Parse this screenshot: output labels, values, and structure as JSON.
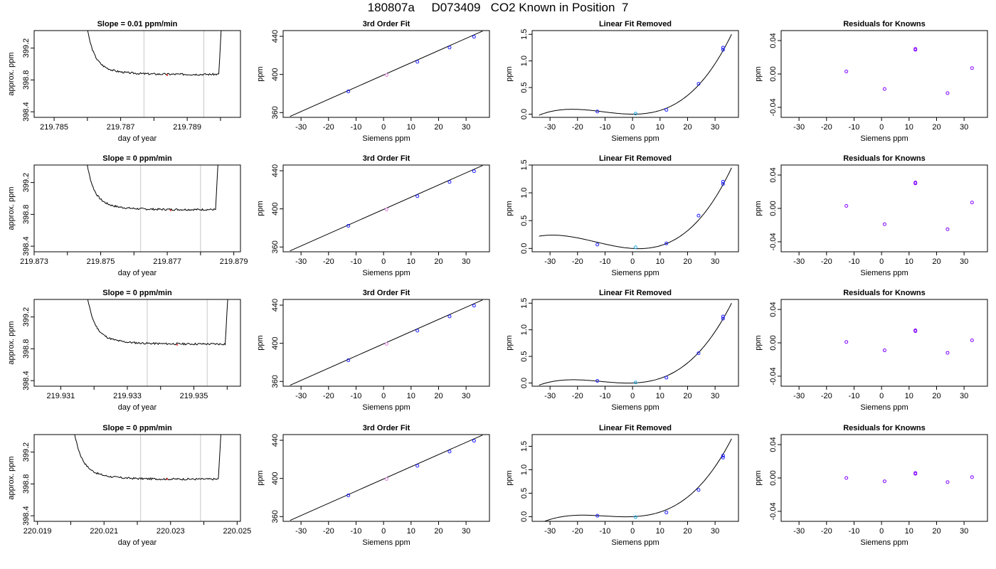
{
  "page": {
    "title": "180807a     D073409   CO2 Known in Position  7"
  },
  "colors": {
    "line": "#000000",
    "marker_blue": "#1a1aff",
    "marker_purple": "#8000ff",
    "marker_cyan": "#1ca9e6",
    "marker_red": "#ff3030",
    "marker_pink": "#e080e0",
    "vline": "#c8c8c8"
  },
  "chart_data": [
    {
      "type": "line",
      "panel": "trace",
      "title": "Slope =  0.01  ppm/min",
      "xlabel": "day of year",
      "ylabel": "approx. ppm",
      "xlim": [
        219.7844,
        219.7906
      ],
      "ylim": [
        398.33,
        399.42
      ],
      "xticks": [
        219.785,
        219.786,
        219.787,
        219.788,
        219.789,
        219.79
      ],
      "xtick_labels": [
        "219.785",
        "",
        "219.787",
        "",
        "219.789",
        ""
      ],
      "yticks": [
        398.4,
        398.8,
        399.2
      ],
      "ytick_labels": [
        "398.4",
        "398.8",
        "399.2"
      ],
      "vlines": [
        219.7877,
        219.7895
      ],
      "x_start": 219.7858,
      "x_end": 219.7901,
      "plateau": 398.87,
      "noise": 0.012,
      "seed": 3,
      "marker": {
        "x": 219.7884,
        "y": 398.86
      }
    },
    {
      "type": "line",
      "panel": "fit",
      "title": "3rd Order Fit",
      "xlabel": "Siemens ppm",
      "ylabel": "ppm",
      "xlim": [
        -36.5,
        38.5
      ],
      "ylim": [
        355,
        446
      ],
      "xticks": [
        -30,
        -20,
        -10,
        0,
        10,
        20,
        30
      ],
      "xtick_labels": [
        "-30",
        "-20",
        "-10",
        "0",
        "10",
        "20",
        "30"
      ],
      "yticks": [
        360,
        400,
        440
      ],
      "ytick_labels": [
        "360",
        "400",
        "440"
      ],
      "line": {
        "x": [
          -34,
          36
        ],
        "y": [
          356,
          445.5
        ]
      },
      "points": [
        {
          "x": -12.8,
          "y": 382.2,
          "c": "blue"
        },
        {
          "x": 1.1,
          "y": 399.4,
          "c": "pink"
        },
        {
          "x": 12.3,
          "y": 413.3,
          "c": "blue"
        },
        {
          "x": 24.0,
          "y": 428.2,
          "c": "blue"
        },
        {
          "x": 32.9,
          "y": 439.5,
          "c": "blue"
        }
      ]
    },
    {
      "type": "line",
      "panel": "cubic",
      "title": "Linear Fit Removed",
      "xlabel": "Siemens ppm",
      "ylabel": "ppm",
      "xlim": [
        -36.5,
        38.5
      ],
      "ylim": [
        -0.06,
        1.57
      ],
      "xticks": [
        -30,
        -20,
        -10,
        0,
        10,
        20,
        30
      ],
      "xtick_labels": [
        "-30",
        "-20",
        "-10",
        "0",
        "10",
        "20",
        "30"
      ],
      "yticks": [
        0,
        0.5,
        1,
        1.5
      ],
      "ytick_labels": [
        "0.0",
        "0.5",
        "1.0",
        "1.5"
      ],
      "curve": {
        "x": [
          -34,
          -20,
          0,
          36
        ],
        "y": [
          -0.02,
          0.09,
          0.0,
          1.5
        ]
      },
      "points": [
        {
          "x": -12.8,
          "y": 0.05,
          "c": "blue"
        },
        {
          "x": 1.1,
          "y": 0.01,
          "c": "cyan"
        },
        {
          "x": 12.3,
          "y": 0.08,
          "c": "blue"
        },
        {
          "x": 24.0,
          "y": 0.57,
          "c": "blue"
        },
        {
          "x": 32.9,
          "y": 1.21,
          "c": "blue"
        },
        {
          "x": 32.9,
          "y": 1.25,
          "c": "blue"
        }
      ]
    },
    {
      "type": "scatter",
      "panel": "resid",
      "title": "Residuals for Knowns",
      "xlabel": "Siemens ppm",
      "ylabel": "ppm",
      "xlim": [
        -36.5,
        38.5
      ],
      "ylim": [
        -0.052,
        0.052
      ],
      "xticks": [
        -30,
        -20,
        -10,
        0,
        10,
        20,
        30
      ],
      "xtick_labels": [
        "-30",
        "-20",
        "-10",
        "0",
        "10",
        "20",
        "30"
      ],
      "yticks": [
        -0.04,
        0,
        0.04
      ],
      "ytick_labels": [
        "-0.04",
        "0.00",
        "0.04"
      ],
      "points": [
        {
          "x": -12.8,
          "y": 0.003
        },
        {
          "x": 1.1,
          "y": -0.018
        },
        {
          "x": 12.3,
          "y": 0.029
        },
        {
          "x": 12.3,
          "y": 0.03
        },
        {
          "x": 24.0,
          "y": -0.023
        },
        {
          "x": 32.9,
          "y": 0.007
        }
      ]
    },
    {
      "type": "line",
      "panel": "trace",
      "title": "Slope =  0  ppm/min",
      "xlabel": "day of year",
      "ylabel": "approx. ppm",
      "xlim": [
        219.873,
        219.8792
      ],
      "ylim": [
        398.33,
        399.42
      ],
      "xticks": [
        219.873,
        219.874,
        219.875,
        219.876,
        219.877,
        219.878,
        219.879
      ],
      "xtick_labels": [
        "219.873",
        "",
        "219.875",
        "",
        "219.877",
        "",
        "219.879"
      ],
      "yticks": [
        398.4,
        398.8,
        399.2
      ],
      "ytick_labels": [
        "398.4",
        "398.8",
        "399.2"
      ],
      "vlines": [
        219.8762,
        219.878
      ],
      "x_start": 219.8744,
      "x_end": 219.8786,
      "plateau": 398.86,
      "noise": 0.012,
      "seed": 7,
      "marker": {
        "x": 219.8771,
        "y": 398.85
      }
    },
    {
      "type": "line",
      "panel": "fit",
      "title": "3rd Order Fit",
      "xlabel": "Siemens ppm",
      "ylabel": "ppm",
      "xlim": [
        -36.5,
        38.5
      ],
      "ylim": [
        355,
        446
      ],
      "xticks": [
        -30,
        -20,
        -10,
        0,
        10,
        20,
        30
      ],
      "xtick_labels": [
        "-30",
        "-20",
        "-10",
        "0",
        "10",
        "20",
        "30"
      ],
      "yticks": [
        360,
        400,
        440
      ],
      "ytick_labels": [
        "360",
        "400",
        "440"
      ],
      "line": {
        "x": [
          -34,
          36
        ],
        "y": [
          356,
          445.5
        ]
      },
      "points": [
        {
          "x": -12.8,
          "y": 382.2,
          "c": "blue"
        },
        {
          "x": 1.1,
          "y": 399.4,
          "c": "pink"
        },
        {
          "x": 12.3,
          "y": 413.3,
          "c": "blue"
        },
        {
          "x": 24.0,
          "y": 428.2,
          "c": "blue"
        },
        {
          "x": 32.9,
          "y": 439.5,
          "c": "blue"
        }
      ]
    },
    {
      "type": "line",
      "panel": "cubic",
      "title": "Linear Fit Removed",
      "xlabel": "Siemens ppm",
      "ylabel": "ppm",
      "xlim": [
        -36.5,
        38.5
      ],
      "ylim": [
        -0.06,
        1.5
      ],
      "xticks": [
        -30,
        -20,
        -10,
        0,
        10,
        20,
        30
      ],
      "xtick_labels": [
        "-30",
        "-20",
        "-10",
        "0",
        "10",
        "20",
        "30"
      ],
      "yticks": [
        0,
        0.5,
        1,
        1.5
      ],
      "ytick_labels": [
        "0.0",
        "0.5",
        "1.0",
        "1.5"
      ],
      "curve": {
        "x": [
          -34,
          -20,
          0,
          36
        ],
        "y": [
          0.22,
          0.19,
          0.0,
          1.45
        ]
      },
      "points": [
        {
          "x": -12.8,
          "y": 0.07,
          "c": "blue"
        },
        {
          "x": 1.1,
          "y": 0.02,
          "c": "cyan"
        },
        {
          "x": 12.3,
          "y": 0.09,
          "c": "blue"
        },
        {
          "x": 24.0,
          "y": 0.59,
          "c": "blue"
        },
        {
          "x": 32.9,
          "y": 1.16,
          "c": "blue"
        },
        {
          "x": 32.9,
          "y": 1.2,
          "c": "blue"
        }
      ]
    },
    {
      "type": "scatter",
      "panel": "resid",
      "title": "Residuals for Knowns",
      "xlabel": "Siemens ppm",
      "ylabel": "ppm",
      "xlim": [
        -36.5,
        38.5
      ],
      "ylim": [
        -0.052,
        0.052
      ],
      "xticks": [
        -30,
        -20,
        -10,
        0,
        10,
        20,
        30
      ],
      "xtick_labels": [
        "-30",
        "-20",
        "-10",
        "0",
        "10",
        "20",
        "30"
      ],
      "yticks": [
        -0.04,
        0,
        0.04
      ],
      "ytick_labels": [
        "-0.04",
        "0.00",
        "0.04"
      ],
      "points": [
        {
          "x": -12.8,
          "y": 0.003
        },
        {
          "x": 1.1,
          "y": -0.019
        },
        {
          "x": 12.3,
          "y": 0.03
        },
        {
          "x": 12.3,
          "y": 0.031
        },
        {
          "x": 24.0,
          "y": -0.025
        },
        {
          "x": 32.9,
          "y": 0.007
        }
      ]
    },
    {
      "type": "line",
      "panel": "trace",
      "title": "Slope =  0  ppm/min",
      "xlabel": "day of year",
      "ylabel": "approx. ppm",
      "xlim": [
        219.9302,
        219.9364
      ],
      "ylim": [
        398.33,
        399.42
      ],
      "xticks": [
        219.931,
        219.932,
        219.933,
        219.934,
        219.935,
        219.936
      ],
      "xtick_labels": [
        "219.931",
        "",
        "219.933",
        "",
        "219.935",
        ""
      ],
      "yticks": [
        398.4,
        398.8,
        399.2
      ],
      "ytick_labels": [
        "398.4",
        "398.8",
        "399.2"
      ],
      "vlines": [
        219.9336,
        219.9354
      ],
      "x_start": 219.9316,
      "x_end": 219.9361,
      "plateau": 398.86,
      "noise": 0.012,
      "seed": 11,
      "marker": {
        "x": 219.9345,
        "y": 398.85
      }
    },
    {
      "type": "line",
      "panel": "fit",
      "title": "3rd Order Fit",
      "xlabel": "Siemens ppm",
      "ylabel": "ppm",
      "xlim": [
        -36.5,
        38.5
      ],
      "ylim": [
        355,
        446
      ],
      "xticks": [
        -30,
        -20,
        -10,
        0,
        10,
        20,
        30
      ],
      "xtick_labels": [
        "-30",
        "-20",
        "-10",
        "0",
        "10",
        "20",
        "30"
      ],
      "yticks": [
        360,
        400,
        440
      ],
      "ytick_labels": [
        "360",
        "400",
        "440"
      ],
      "line": {
        "x": [
          -34,
          36
        ],
        "y": [
          356,
          445.5
        ]
      },
      "points": [
        {
          "x": -12.8,
          "y": 382.2,
          "c": "blue"
        },
        {
          "x": 1.1,
          "y": 399.4,
          "c": "pink"
        },
        {
          "x": 12.3,
          "y": 413.3,
          "c": "blue"
        },
        {
          "x": 24.0,
          "y": 428.2,
          "c": "blue"
        },
        {
          "x": 32.9,
          "y": 439.5,
          "c": "blue"
        }
      ]
    },
    {
      "type": "line",
      "panel": "cubic",
      "title": "Linear Fit Removed",
      "xlabel": "Siemens ppm",
      "ylabel": "ppm",
      "xlim": [
        -36.5,
        38.5
      ],
      "ylim": [
        -0.06,
        1.57
      ],
      "xticks": [
        -30,
        -20,
        -10,
        0,
        10,
        20,
        30
      ],
      "xtick_labels": [
        "-30",
        "-20",
        "-10",
        "0",
        "10",
        "20",
        "30"
      ],
      "yticks": [
        0,
        0.5,
        1,
        1.5
      ],
      "ytick_labels": [
        "0.0",
        "0.5",
        "1.0",
        "1.5"
      ],
      "curve": {
        "x": [
          -34,
          -20,
          0,
          36
        ],
        "y": [
          -0.04,
          0.06,
          0.0,
          1.5
        ]
      },
      "points": [
        {
          "x": -12.8,
          "y": 0.04,
          "c": "blue"
        },
        {
          "x": 1.1,
          "y": 0.01,
          "c": "cyan"
        },
        {
          "x": 12.3,
          "y": 0.1,
          "c": "blue"
        },
        {
          "x": 24.0,
          "y": 0.56,
          "c": "blue"
        },
        {
          "x": 32.9,
          "y": 1.21,
          "c": "blue"
        },
        {
          "x": 32.9,
          "y": 1.25,
          "c": "blue"
        }
      ]
    },
    {
      "type": "scatter",
      "panel": "resid",
      "title": "Residuals for Knowns",
      "xlabel": "Siemens ppm",
      "ylabel": "ppm",
      "xlim": [
        -36.5,
        38.5
      ],
      "ylim": [
        -0.052,
        0.052
      ],
      "xticks": [
        -30,
        -20,
        -10,
        0,
        10,
        20,
        30
      ],
      "xtick_labels": [
        "-30",
        "-20",
        "-10",
        "0",
        "10",
        "20",
        "30"
      ],
      "yticks": [
        -0.04,
        0,
        0.04
      ],
      "ytick_labels": [
        "-0.04",
        "0.00",
        "0.04"
      ],
      "points": [
        {
          "x": -12.8,
          "y": 0.001
        },
        {
          "x": 1.1,
          "y": -0.009
        },
        {
          "x": 12.3,
          "y": 0.014
        },
        {
          "x": 12.3,
          "y": 0.015
        },
        {
          "x": 24.0,
          "y": -0.012
        },
        {
          "x": 32.9,
          "y": 0.003
        }
      ]
    },
    {
      "type": "line",
      "panel": "trace",
      "title": "Slope =  0  ppm/min",
      "xlabel": "day of year",
      "ylabel": "approx. ppm",
      "xlim": [
        220.0189,
        220.0251
      ],
      "ylim": [
        398.33,
        399.42
      ],
      "xticks": [
        220.019,
        220.02,
        220.021,
        220.022,
        220.023,
        220.024,
        220.025
      ],
      "xtick_labels": [
        "220.019",
        "",
        "220.021",
        "",
        "220.023",
        "",
        "220.025"
      ],
      "yticks": [
        398.4,
        398.8,
        399.2
      ],
      "ytick_labels": [
        "398.4",
        "398.8",
        "399.2"
      ],
      "vlines": [
        220.0221,
        220.0239
      ],
      "x_start": 220.0199,
      "x_end": 220.0246,
      "plateau": 398.86,
      "noise": 0.012,
      "seed": 17,
      "marker": {
        "x": 220.0229,
        "y": 398.86
      }
    },
    {
      "type": "line",
      "panel": "fit",
      "title": "3rd Order Fit",
      "xlabel": "Siemens ppm",
      "ylabel": "ppm",
      "xlim": [
        -36.5,
        38.5
      ],
      "ylim": [
        355,
        446
      ],
      "xticks": [
        -30,
        -20,
        -10,
        0,
        10,
        20,
        30
      ],
      "xtick_labels": [
        "-30",
        "-20",
        "-10",
        "0",
        "10",
        "20",
        "30"
      ],
      "yticks": [
        360,
        400,
        440
      ],
      "ytick_labels": [
        "360",
        "400",
        "440"
      ],
      "line": {
        "x": [
          -34,
          36
        ],
        "y": [
          356,
          445.5
        ]
      },
      "points": [
        {
          "x": -12.8,
          "y": 382.2,
          "c": "blue"
        },
        {
          "x": 1.1,
          "y": 399.4,
          "c": "pink"
        },
        {
          "x": 12.3,
          "y": 413.3,
          "c": "blue"
        },
        {
          "x": 24.0,
          "y": 428.2,
          "c": "blue"
        },
        {
          "x": 32.9,
          "y": 439.5,
          "c": "blue"
        }
      ]
    },
    {
      "type": "line",
      "panel": "cubic",
      "title": "Linear Fit Removed",
      "xlabel": "Siemens ppm",
      "ylabel": "ppm",
      "xlim": [
        -36.5,
        38.5
      ],
      "ylim": [
        -0.1,
        1.75
      ],
      "xticks": [
        -30,
        -20,
        -10,
        0,
        10,
        20,
        30
      ],
      "xtick_labels": [
        "-30",
        "-20",
        "-10",
        "0",
        "10",
        "20",
        "30"
      ],
      "yticks": [
        0,
        0.5,
        1,
        1.5
      ],
      "ytick_labels": [
        "0.0",
        "0.5",
        "1.0",
        "1.5"
      ],
      "curve": {
        "x": [
          -34,
          -20,
          0,
          36
        ],
        "y": [
          -0.15,
          0.03,
          0.0,
          1.66
        ]
      },
      "points": [
        {
          "x": -12.8,
          "y": 0.02,
          "c": "blue"
        },
        {
          "x": 1.1,
          "y": -0.01,
          "c": "cyan"
        },
        {
          "x": 12.3,
          "y": 0.09,
          "c": "blue"
        },
        {
          "x": 24.0,
          "y": 0.57,
          "c": "blue"
        },
        {
          "x": 32.9,
          "y": 1.26,
          "c": "blue"
        },
        {
          "x": 32.9,
          "y": 1.3,
          "c": "blue"
        }
      ]
    },
    {
      "type": "scatter",
      "panel": "resid",
      "title": "Residuals for Knowns",
      "xlabel": "Siemens ppm",
      "ylabel": "ppm",
      "xlim": [
        -36.5,
        38.5
      ],
      "ylim": [
        -0.052,
        0.052
      ],
      "xticks": [
        -30,
        -20,
        -10,
        0,
        10,
        20,
        30
      ],
      "xtick_labels": [
        "-30",
        "-20",
        "-10",
        "0",
        "10",
        "20",
        "30"
      ],
      "yticks": [
        -0.04,
        0,
        0.04
      ],
      "ytick_labels": [
        "-0.04",
        "0.00",
        "0.04"
      ],
      "points": [
        {
          "x": -12.8,
          "y": 0.0
        },
        {
          "x": 1.1,
          "y": -0.004
        },
        {
          "x": 12.3,
          "y": 0.005
        },
        {
          "x": 12.3,
          "y": 0.006
        },
        {
          "x": 24.0,
          "y": -0.005
        },
        {
          "x": 32.9,
          "y": 0.001
        }
      ]
    }
  ]
}
